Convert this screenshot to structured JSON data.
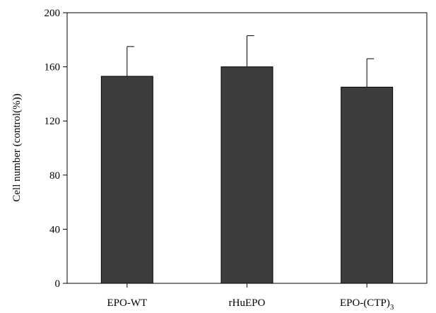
{
  "chart_data": {
    "type": "bar",
    "title": "",
    "xlabel": "",
    "ylabel": "Cell number (control(%))",
    "ylim": [
      0,
      200
    ],
    "yticks": [
      0,
      40,
      80,
      120,
      160,
      200
    ],
    "grid": false,
    "categories": [
      {
        "label": "EPO-WT",
        "sub": ""
      },
      {
        "label": "rHuEPO",
        "sub": ""
      },
      {
        "label": "EPO-(CTP)",
        "sub": "3"
      }
    ],
    "series": [
      {
        "values": [
          153,
          160,
          145
        ],
        "errors": [
          22,
          23,
          21
        ],
        "color": "#3d3d3d"
      }
    ]
  }
}
